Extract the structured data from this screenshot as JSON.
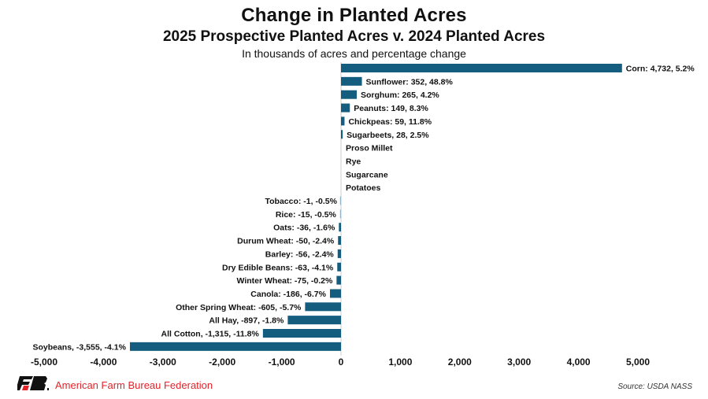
{
  "chart_data": {
    "type": "bar",
    "orientation": "horizontal",
    "title": "Change in Planted Acres",
    "subtitle": "2025 Prospective Planted Acres v. 2024 Planted Acres",
    "note": "In thousands of acres and percentage change",
    "xlabel": "",
    "ylabel": "",
    "xlim": [
      -5000,
      5000
    ],
    "xticks": [
      -5000,
      -4000,
      -3000,
      -2000,
      -1000,
      0,
      1000,
      2000,
      3000,
      4000,
      5000
    ],
    "xtick_labels": [
      "-5,000",
      "-4,000",
      "-3,000",
      "-2,000",
      "-1,000",
      "0",
      "1,000",
      "2,000",
      "3,000",
      "4,000",
      "5,000"
    ],
    "grid": false,
    "bar_color": "#145d7f",
    "light_bar_color": "#8fb3c8",
    "categories": [
      "Corn",
      "Sunflower",
      "Sorghum",
      "Peanuts",
      "Chickpeas",
      "Sugarbeets",
      "Proso Millet",
      "Rye",
      "Sugarcane",
      "Potatoes",
      "Tobacco",
      "Rice",
      "Oats",
      "Durum Wheat",
      "Barley",
      "Dry Edible Beans",
      "Winter Wheat",
      "Canola",
      "Other Spring Wheat",
      "All Hay",
      "All Cotton",
      "Soybeans"
    ],
    "values": [
      4732,
      352,
      265,
      149,
      59,
      28,
      0,
      0,
      0,
      0,
      -1,
      -15,
      -36,
      -50,
      -56,
      -63,
      -75,
      -186,
      -605,
      -897,
      -1315,
      -3555
    ],
    "labels": [
      "Corn: 4,732, 5.2%",
      "Sunflower: 352, 48.8%",
      "Sorghum: 265, 4.2%",
      "Peanuts: 149, 8.3%",
      "Chickpeas: 59, 11.8%",
      "Sugarbeets, 28, 2.5%",
      "Proso Millet",
      "Rye",
      "Sugarcane",
      "Potatoes",
      "Tobacco: -1, -0.5%",
      "Rice: -15, -0.5%",
      "Oats: -36, -1.6%",
      "Durum Wheat: -50, -2.4%",
      "Barley: -56, -2.4%",
      "Dry Edible Beans: -63, -4.1%",
      "Winter Wheat: -75, -0.2%",
      "Canola: -186, -6.7%",
      "Other Spring Wheat: -605, -5.7%",
      "All Hay, -897, -1.8%",
      "All Cotton, -1,315, -11.8%",
      "Soybeans, -3,555, -4.1%"
    ]
  },
  "footer": {
    "organization": "American Farm Bureau Federation",
    "source": "Source: USDA NASS",
    "logo_icon": "afbf-logo-icon",
    "brand_color": "#e3232a"
  }
}
